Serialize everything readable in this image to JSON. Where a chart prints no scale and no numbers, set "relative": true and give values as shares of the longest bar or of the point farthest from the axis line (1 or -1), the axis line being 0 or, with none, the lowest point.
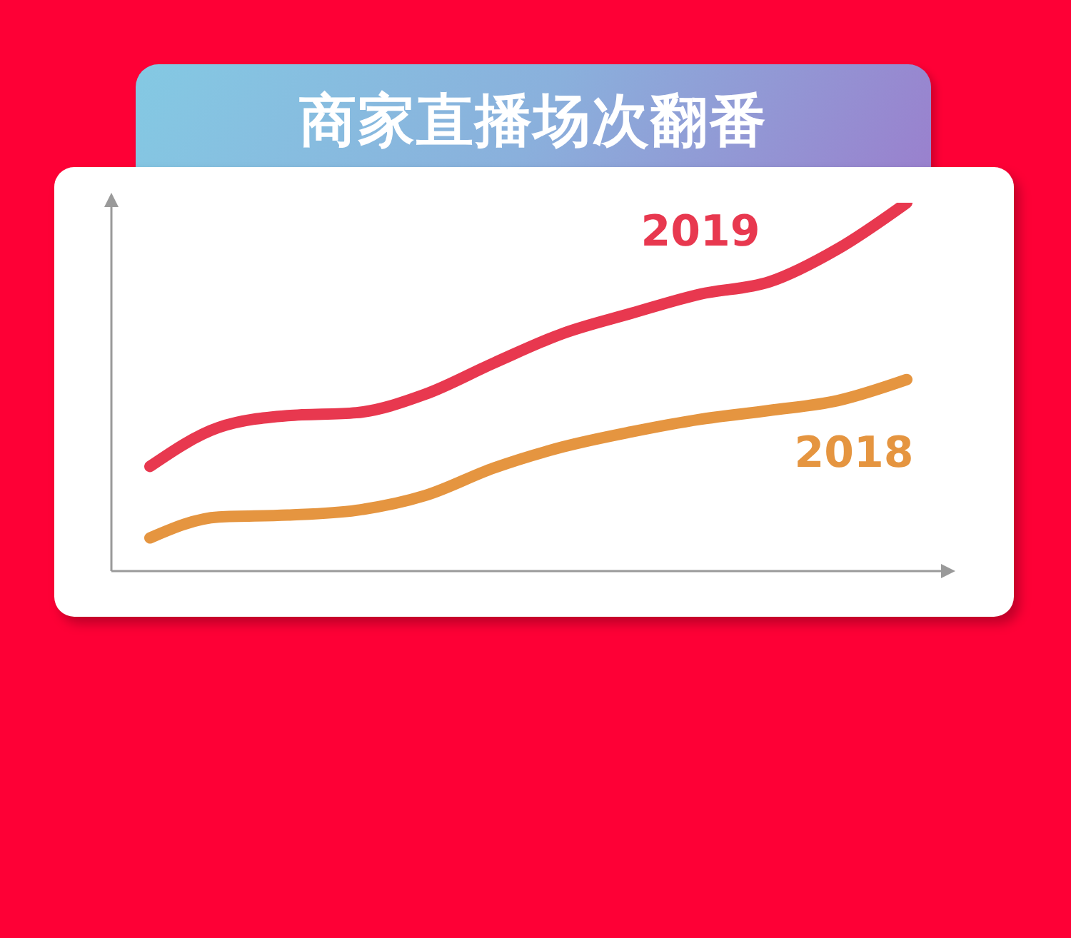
{
  "chart_data": {
    "type": "line",
    "title": "商家直播场次翻番",
    "relative": true,
    "categories": [
      null,
      null,
      null,
      null,
      null,
      null,
      null,
      null,
      null,
      null,
      null,
      null
    ],
    "series": [
      {
        "name": "2019",
        "color": "#e8384f",
        "values": [
          0.284,
          0.39,
          0.422,
          0.43,
          0.48,
          0.565,
          0.645,
          0.7,
          0.752,
          0.785,
          0.875,
          1.0
        ]
      },
      {
        "name": "2018",
        "color": "#e59540",
        "values": [
          0.09,
          0.147,
          0.152,
          0.165,
          0.205,
          0.28,
          0.337,
          0.378,
          0.412,
          0.436,
          0.463,
          0.52
        ]
      }
    ]
  }
}
